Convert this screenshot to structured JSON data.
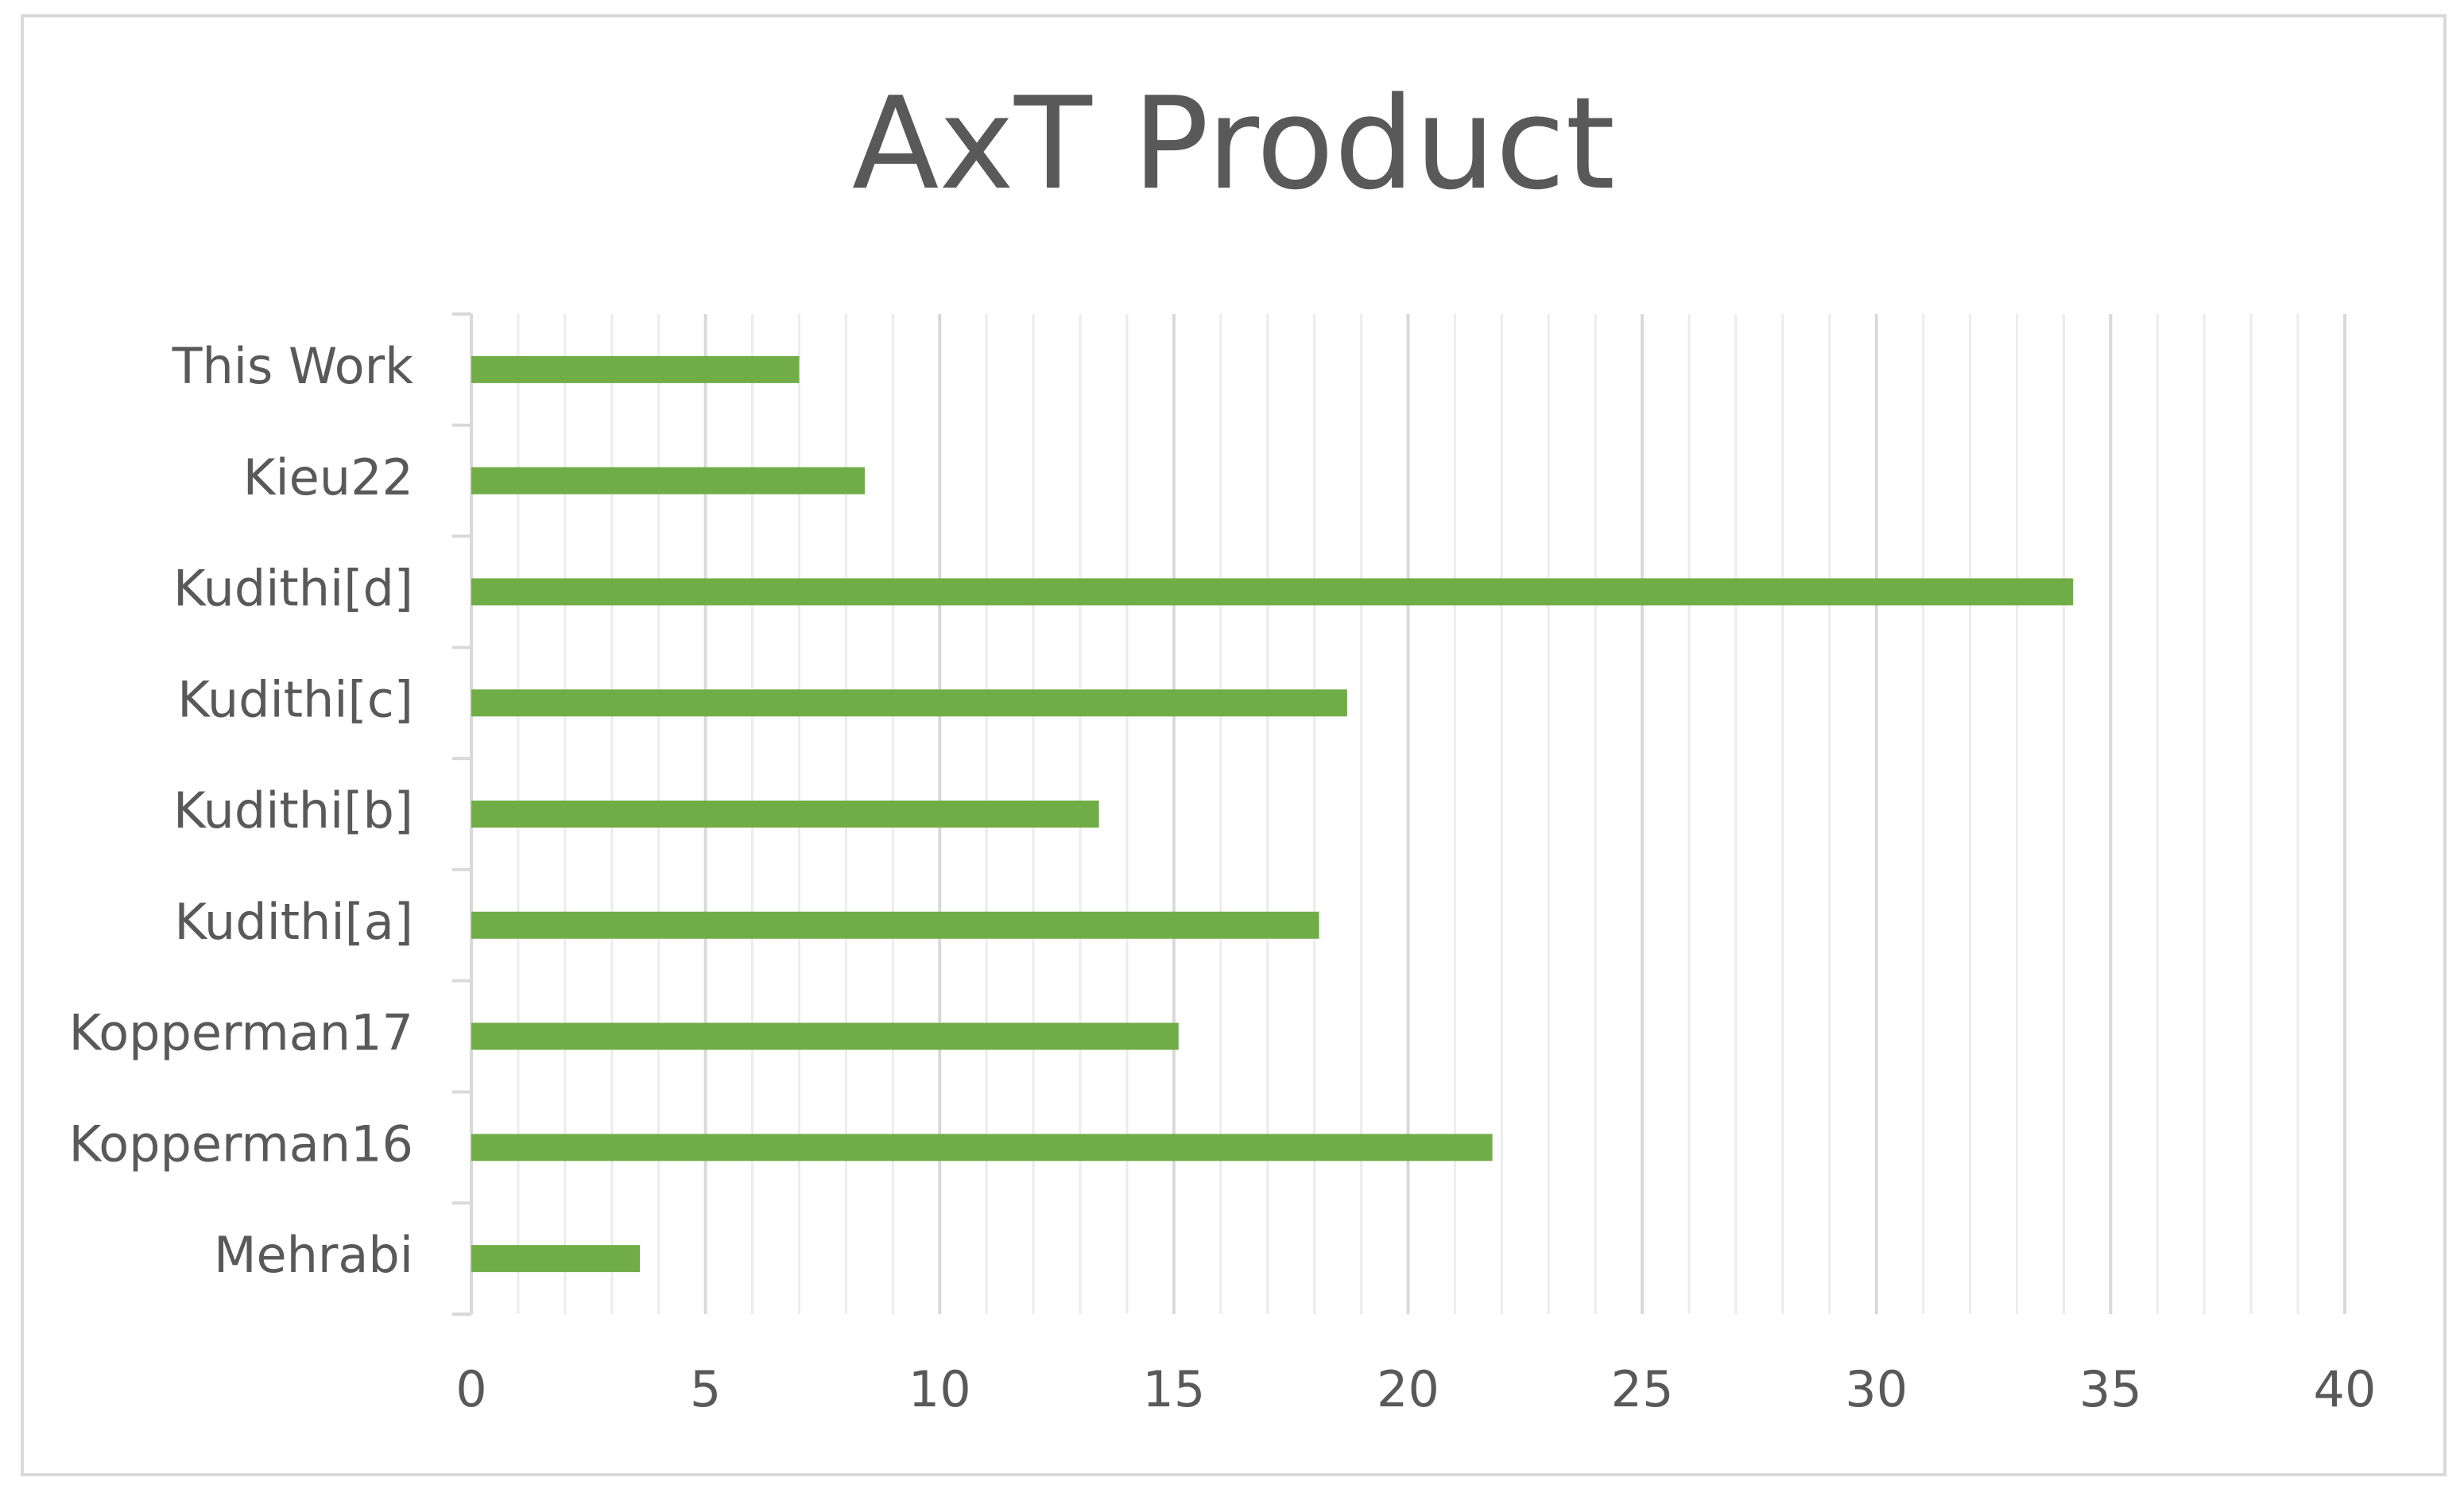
{
  "chart_data": {
    "type": "bar",
    "orientation": "horizontal",
    "title": "AxT Product",
    "categories": [
      "This Work",
      "Kieu22",
      "Kudithi[d]",
      "Kudithi[c]",
      "Kudithi[b]",
      "Kudithi[a]",
      "Kopperman17",
      "Kopperman16",
      "Mehrabi"
    ],
    "values": [
      7.0,
      8.4,
      34.2,
      18.7,
      13.4,
      18.1,
      15.1,
      21.8,
      3.6
    ],
    "color": "#70ad47",
    "xlim": [
      0,
      40
    ],
    "xticks": [
      0,
      5,
      10,
      15,
      20,
      25,
      30,
      35,
      40
    ],
    "xminor": [
      1,
      2,
      3,
      4,
      6,
      7,
      8,
      9,
      11,
      12,
      13,
      14,
      16,
      17,
      18,
      19,
      21,
      22,
      23,
      24,
      26,
      27,
      28,
      29,
      31,
      32,
      33,
      34,
      36,
      37,
      38,
      39
    ],
    "grid": true
  }
}
